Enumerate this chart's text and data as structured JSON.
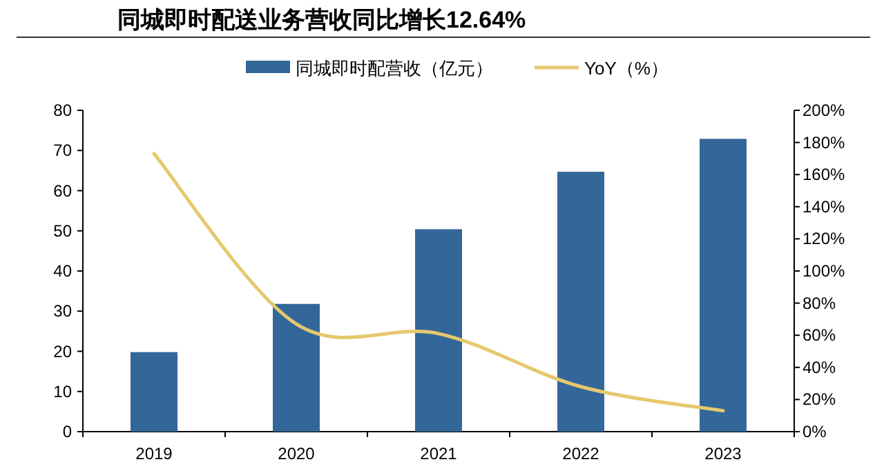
{
  "chart_data": {
    "type": "bar",
    "title": "同城即时配送业务营收同比增长12.64%",
    "categories": [
      "2019",
      "2020",
      "2021",
      "2022",
      "2023"
    ],
    "series": [
      {
        "name": "同城即时配营收（亿元）",
        "color": "#336699",
        "values": [
          19.8,
          31.8,
          50.4,
          64.7,
          72.9
        ]
      },
      {
        "name": "YoY（%）",
        "type": "line",
        "axis": "y2",
        "color": "#e6c86e",
        "values": [
          173,
          67,
          61,
          28,
          13
        ]
      }
    ],
    "ylim": [
      0,
      80
    ],
    "yticks": [
      0,
      10,
      20,
      30,
      40,
      50,
      60,
      70,
      80
    ],
    "y2lim": [
      0,
      200
    ],
    "y2ticks": [
      {
        "value": 0,
        "label": "0%"
      },
      {
        "value": 20,
        "label": "20%"
      },
      {
        "value": 40,
        "label": "40%"
      },
      {
        "value": 60,
        "label": "60%"
      },
      {
        "value": 80,
        "label": "80%"
      },
      {
        "value": 100,
        "label": "100%"
      },
      {
        "value": 120,
        "label": "120%"
      },
      {
        "value": 140,
        "label": "140%"
      },
      {
        "value": 160,
        "label": "160%"
      },
      {
        "value": 180,
        "label": "180%"
      },
      {
        "value": 200,
        "label": "200%"
      }
    ],
    "legend": "top",
    "grid": false
  }
}
